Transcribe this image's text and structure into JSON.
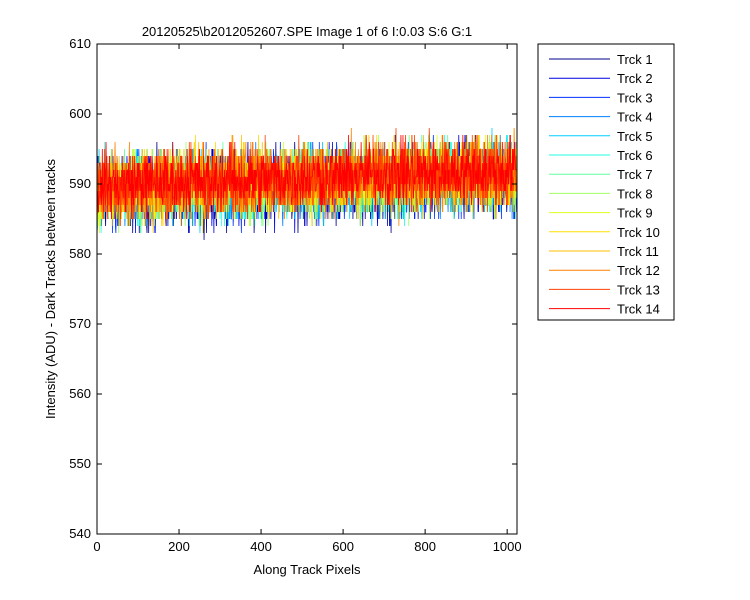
{
  "chart_data": {
    "type": "line",
    "title": "20120525\\b2012052607.SPE  Image 1 of 6  I:0.03  S:6  G:1",
    "xlabel": "Along Track Pixels",
    "ylabel": "Intensity (ADU) - Dark Tracks between tracks",
    "xlim": [
      0,
      1024
    ],
    "ylim": [
      540,
      610
    ],
    "xticks": [
      "0",
      "200",
      "400",
      "600",
      "800",
      "1000"
    ],
    "yticks": [
      "540",
      "550",
      "560",
      "570",
      "580",
      "590",
      "600",
      "610"
    ],
    "grid": false,
    "legend_position": "outside-right-top",
    "points_per_series": 1024,
    "series": [
      {
        "name": "Trck 1",
        "color": "#00008f",
        "mean_start": 588.6,
        "mean_end": 590.6,
        "spread": 2.6
      },
      {
        "name": "Trck 2",
        "color": "#0000df",
        "mean_start": 588.7,
        "mean_end": 590.8,
        "spread": 2.5
      },
      {
        "name": "Trck 3",
        "color": "#0030ff",
        "mean_start": 588.8,
        "mean_end": 590.9,
        "spread": 2.5
      },
      {
        "name": "Trck 4",
        "color": "#0080ff",
        "mean_start": 588.9,
        "mean_end": 591.0,
        "spread": 2.4
      },
      {
        "name": "Trck 5",
        "color": "#00cfff",
        "mean_start": 589.0,
        "mean_end": 591.1,
        "spread": 2.4
      },
      {
        "name": "Trck 6",
        "color": "#20ffdf",
        "mean_start": 589.1,
        "mean_end": 591.2,
        "spread": 2.4
      },
      {
        "name": "Trck 7",
        "color": "#60ff9f",
        "mean_start": 589.2,
        "mean_end": 591.3,
        "spread": 2.4
      },
      {
        "name": "Trck 8",
        "color": "#9fff60",
        "mean_start": 589.3,
        "mean_end": 591.4,
        "spread": 2.4
      },
      {
        "name": "Trck 9",
        "color": "#dfff20",
        "mean_start": 589.4,
        "mean_end": 591.5,
        "spread": 2.4
      },
      {
        "name": "Trck 10",
        "color": "#ffdf00",
        "mean_start": 589.5,
        "mean_end": 591.6,
        "spread": 2.4
      },
      {
        "name": "Trck 11",
        "color": "#ffbf00",
        "mean_start": 589.6,
        "mean_end": 591.7,
        "spread": 2.4
      },
      {
        "name": "Trck 12",
        "color": "#ff8000",
        "mean_start": 589.7,
        "mean_end": 591.8,
        "spread": 2.5
      },
      {
        "name": "Trck 13",
        "color": "#ff4000",
        "mean_start": 589.8,
        "mean_end": 591.9,
        "spread": 2.5
      },
      {
        "name": "Trck 14",
        "color": "#ff0000",
        "mean_start": 589.9,
        "mean_end": 592.0,
        "spread": 2.3
      }
    ]
  }
}
